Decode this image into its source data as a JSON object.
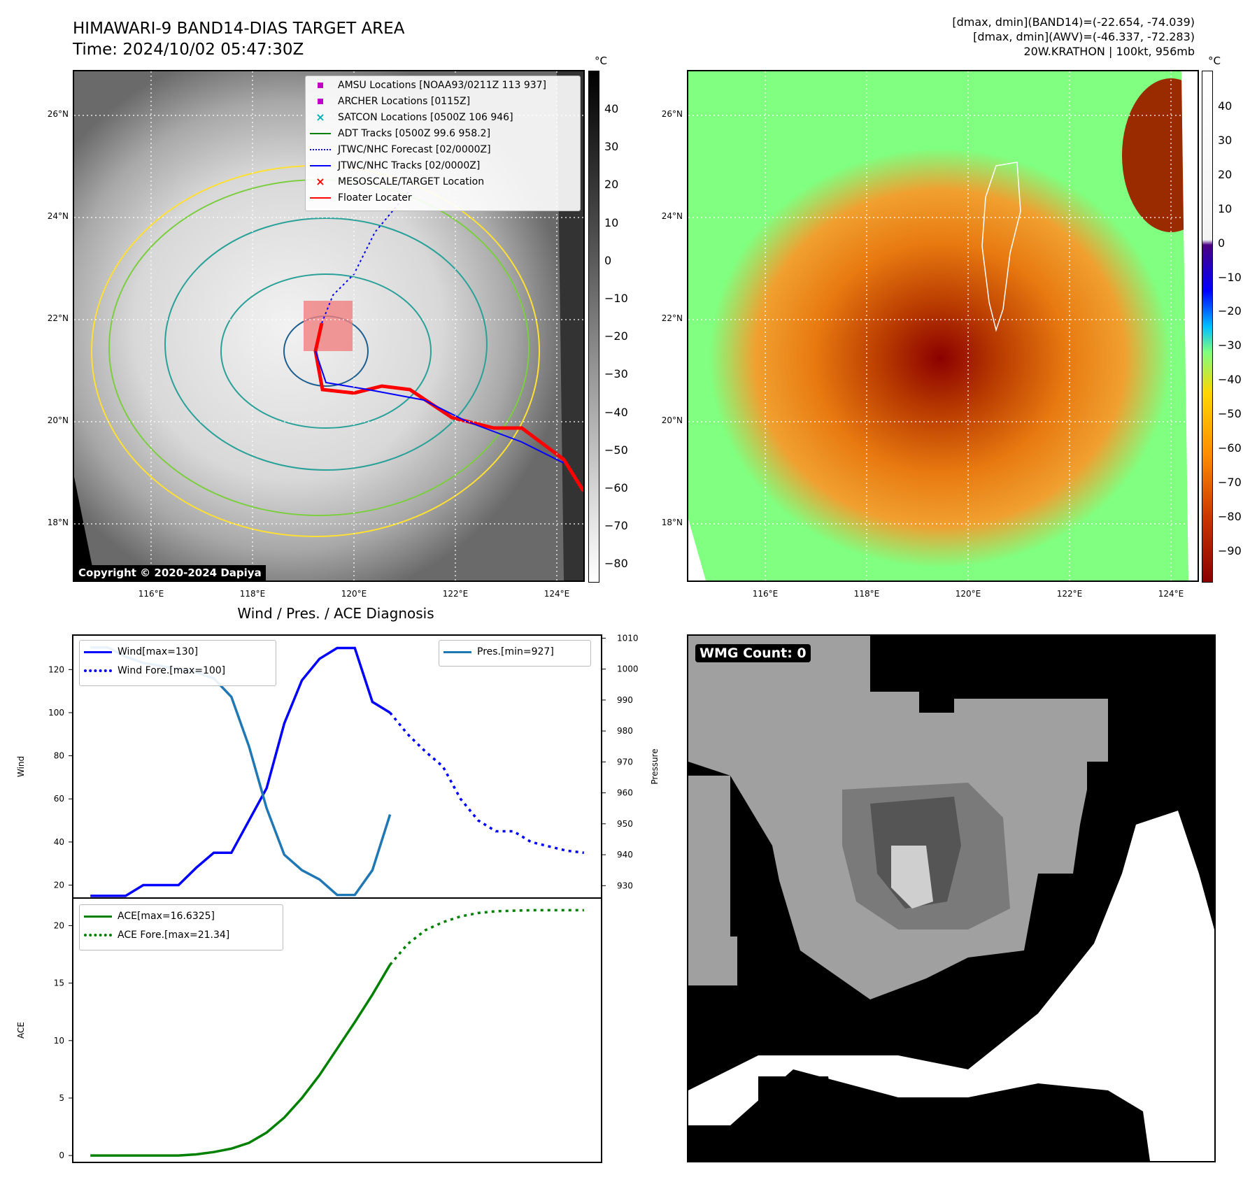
{
  "header": {
    "title": "HIMAWARI-9 BAND14-DIAS TARGET AREA",
    "time": "Time: 2024/10/02 05:47:30Z",
    "stats_band14": "[dmax, dmin](BAND14)=(-22.654, -74.039)",
    "stats_awv": "[dmax, dmin](AWV)=(-46.337, -72.283)",
    "storm": "20W.KRATHON | 100kt, 956mb"
  },
  "ir_panel": {
    "copyright": "Copyright © 2020-2024 Dapiya",
    "lat_labels": [
      "26°N",
      "24°N",
      "22°N",
      "20°N",
      "18°N"
    ],
    "lon_labels": [
      "116°E",
      "118°E",
      "120°E",
      "122°E",
      "124°E"
    ],
    "colorbar_unit": "°C",
    "colorbar_ticks": [
      "40",
      "30",
      "20",
      "10",
      "0",
      "−10",
      "−20",
      "−30",
      "−40",
      "−50",
      "−60",
      "−70",
      "−80"
    ],
    "legend": [
      {
        "label": "AMSU Locations [NOAA93/0211Z 113 937]",
        "color": "#c000c0",
        "marker": "square"
      },
      {
        "label": "ARCHER Locations [0115Z]",
        "color": "#c000c0",
        "marker": "square"
      },
      {
        "label": "SATCON Locations [0500Z 106 946]",
        "color": "#00b0b0",
        "marker": "x"
      },
      {
        "label": "ADT Tracks [0500Z 99.6 958.2]",
        "color": "#008000",
        "marker": "line"
      },
      {
        "label": "JTWC/NHC Forecast [02/0000Z]",
        "color": "#0000ff",
        "marker": "dotted"
      },
      {
        "label": "JTWC/NHC Tracks [02/0000Z]",
        "color": "#0000ff",
        "marker": "line-dot"
      },
      {
        "label": "MESOSCALE/TARGET Location",
        "color": "#ff0000",
        "marker": "x"
      },
      {
        "label": "Floater Locater",
        "color": "#ff0000",
        "marker": "line"
      }
    ]
  },
  "awv_panel": {
    "lat_labels": [
      "26°N",
      "24°N",
      "22°N",
      "20°N",
      "18°N"
    ],
    "lon_labels": [
      "116°E",
      "118°E",
      "120°E",
      "122°E",
      "124°E"
    ],
    "colorbar_unit": "°C",
    "colorbar_ticks": [
      "40",
      "30",
      "20",
      "10",
      "0",
      "−10",
      "−20",
      "−30",
      "−40",
      "−50",
      "−60",
      "−70",
      "−80",
      "−90"
    ]
  },
  "wmg_panel": {
    "label": "WMG Count: 0"
  },
  "chart_data": [
    {
      "type": "line",
      "title": "Wind / Pres. / ACE Diagnosis",
      "ylabel": "Wind",
      "y2label": "Pressure",
      "ylim": [
        14,
        136
      ],
      "y2lim": [
        926,
        1011
      ],
      "yticks": [
        20,
        40,
        60,
        80,
        100,
        120
      ],
      "y2ticks": [
        930,
        940,
        950,
        960,
        970,
        980,
        990,
        1000,
        1010
      ],
      "x_index_range": [
        -1,
        29
      ],
      "series": [
        {
          "name": "Wind[max=130]",
          "color": "#0000ff",
          "style": "solid",
          "x": [
            0,
            1,
            2,
            3,
            4,
            5,
            6,
            7,
            8,
            9,
            10,
            11,
            12,
            13,
            14,
            15,
            16,
            17
          ],
          "values": [
            15,
            15,
            15,
            20,
            20,
            20,
            28,
            35,
            35,
            50,
            65,
            95,
            115,
            125,
            130,
            130,
            105,
            100
          ]
        },
        {
          "name": "Wind Fore.[max=100]",
          "color": "#0000ff",
          "style": "dotted",
          "x": [
            17,
            18,
            19,
            20,
            21,
            22,
            23,
            24,
            25,
            26,
            27,
            28
          ],
          "values": [
            100,
            90,
            82,
            75,
            60,
            50,
            45,
            45,
            40,
            38,
            36,
            35
          ]
        },
        {
          "name": "Pres.[min=927]",
          "color": "#1f77b4",
          "style": "solid",
          "axis": "right",
          "x": [
            0,
            1,
            2,
            3,
            4,
            5,
            6,
            7,
            8,
            9,
            10,
            11,
            12,
            13,
            14,
            15,
            16,
            17
          ],
          "values": [
            1007,
            1007,
            1004,
            1002,
            1001,
            1000,
            999,
            997,
            991,
            975,
            955,
            940,
            935,
            932,
            927,
            927,
            935,
            953
          ]
        }
      ]
    },
    {
      "type": "line",
      "ylabel": "ACE",
      "ylim": [
        -0.6,
        22.4
      ],
      "yticks": [
        0,
        5,
        10,
        15,
        20
      ],
      "x_index_range": [
        -1,
        29
      ],
      "series": [
        {
          "name": "ACE[max=16.6325]",
          "color": "#008000",
          "style": "solid",
          "x": [
            0,
            1,
            2,
            3,
            4,
            5,
            6,
            7,
            8,
            9,
            10,
            11,
            12,
            13,
            14,
            15,
            16,
            17
          ],
          "values": [
            0,
            0,
            0,
            0,
            0,
            0,
            0.1,
            0.3,
            0.6,
            1.1,
            2.0,
            3.3,
            5.0,
            7.0,
            9.3,
            11.6,
            14.0,
            16.6
          ]
        },
        {
          "name": "ACE Fore.[max=21.34]",
          "color": "#008000",
          "style": "dotted",
          "x": [
            17,
            18,
            19,
            20,
            21,
            22,
            23,
            24,
            25,
            26,
            27,
            28
          ],
          "values": [
            16.6,
            18.4,
            19.6,
            20.3,
            20.8,
            21.1,
            21.25,
            21.3,
            21.34,
            21.34,
            21.34,
            21.34
          ]
        }
      ]
    }
  ]
}
